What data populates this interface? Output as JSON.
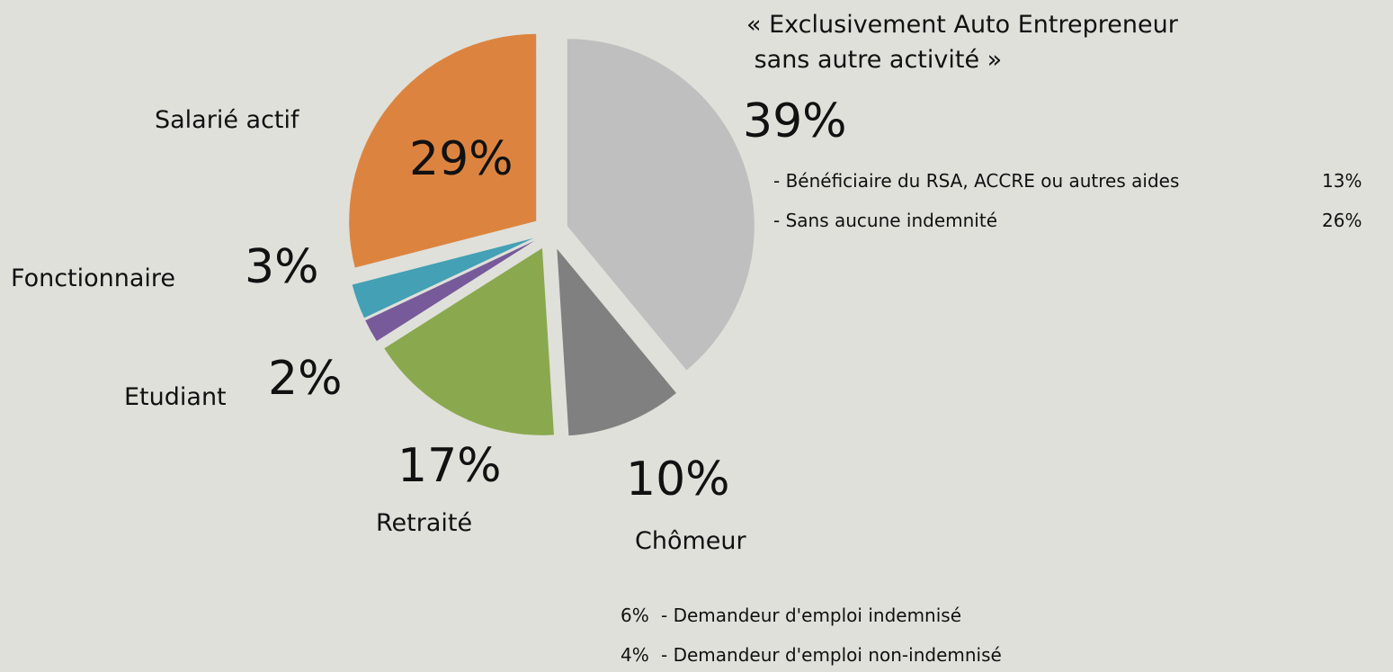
{
  "chart_data": {
    "type": "pie",
    "categories": [
      "« Exclusivement Auto Entrepreneur\n sans autre activité »",
      "Chômeur",
      "Retraité",
      "Etudiant",
      "Fonctionnaire",
      "Salarié actif"
    ],
    "values": [
      39,
      10,
      17,
      2,
      3,
      29
    ],
    "value_labels": [
      "39%",
      "10%",
      "17%",
      "2%",
      "3%",
      "29%"
    ],
    "colors": [
      "#bfbfbf",
      "#808080",
      "#8aa84e",
      "#775a9a",
      "#43a0b5",
      "#dc843f"
    ],
    "details": [
      {
        "labels": [
          "- Bénéficiaire du RSA, ACCRE ou autres aides",
          "- Sans aucune indemnité"
        ],
        "values": [
          13,
          26
        ],
        "value_labels": [
          "13%",
          "26%"
        ]
      },
      {
        "labels": [
          "- Demandeur d'emploi indemnisé",
          "- Demandeur d'emploi non-indemnisé"
        ],
        "values": [
          6,
          4
        ],
        "value_labels": [
          "6%",
          "4%"
        ]
      }
    ]
  }
}
